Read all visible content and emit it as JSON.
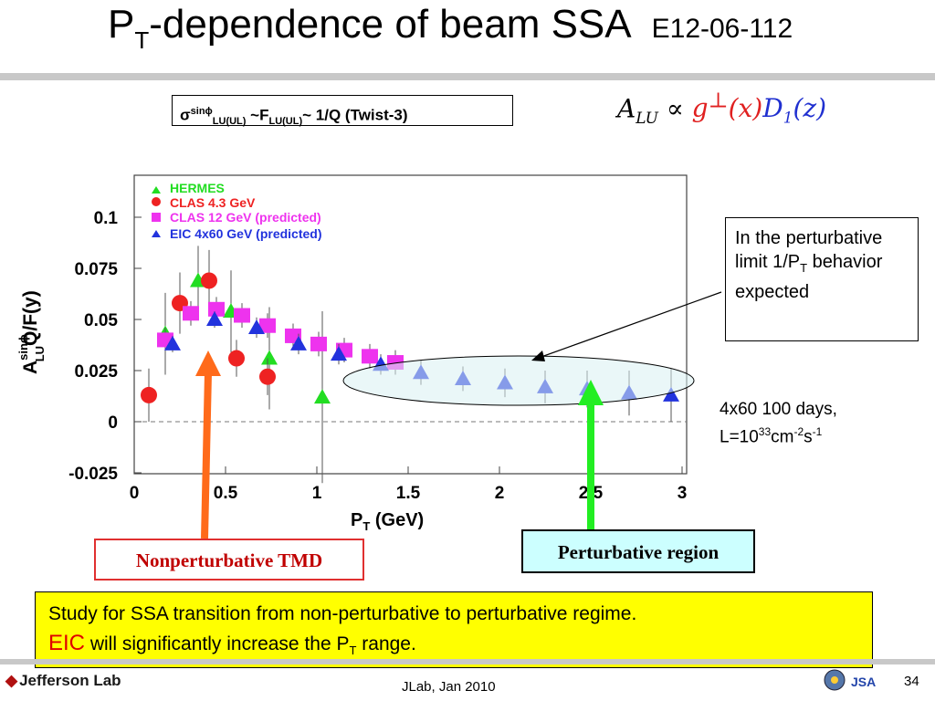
{
  "slide": {
    "title_main": "P",
    "title_sub": "T",
    "title_rest": "-dependence of beam SSA",
    "experiment_code": "E12-06-112",
    "formula": {
      "sigma": "σ",
      "sigma_sup": "sinϕ",
      "sigma_sub": "LU(UL)",
      "tilde1": " ~",
      "F": "F",
      "F_sub": "LU(UL)",
      "rest": "~ 1/Q (Twist-3)"
    },
    "alu_formula": {
      "A": "A",
      "A_sub": "LU",
      "propto": " ∝ ",
      "g": "g",
      "g_sup": "⊥",
      "x": "(x)",
      "D": "D",
      "D_sub": "1",
      "z": "(z)"
    },
    "limit_note": {
      "line1": "In the perturbative limit 1/P",
      "sub": "T",
      "line2": " behavior expected"
    },
    "days_note": {
      "line1": "4x60 100 days,",
      "l_prefix": "L=10",
      "l_exp": "33",
      "cm": "cm",
      "cm_exp": "-2",
      "s": "s",
      "s_exp": "-1"
    },
    "nonpert_label": "Nonperturbative TMD",
    "pert_label": "Perturbative region",
    "study": {
      "line1": "Study for SSA transition from non-perturbative to perturbative regime.",
      "eic": "EIC",
      "line2a": " will significantly increase the P",
      "line2_sub": "T",
      "line2b": " range."
    },
    "footer_logo": "Jefferson Lab",
    "footer_date": "JLab, Jan 2010",
    "page_number": "34",
    "colors": {
      "hermes": "#22dd22",
      "clas43": "#ee2222",
      "clas12": "#ee33ee",
      "eic": "#2233dd",
      "arrow_orange": "#ff6a1a",
      "arrow_green": "#22ee22"
    }
  },
  "chart_data": {
    "type": "scatter",
    "xlabel_main": "P",
    "xlabel_sub": "T",
    "xlabel_rest": " (GeV)",
    "ylabel_main": "A",
    "ylabel_sup": "sinϕ",
    "ylabel_sub": "LU",
    "ylabel_rest": "Q/F(y)",
    "xlim": [
      0,
      3
    ],
    "ylim": [
      -0.025,
      0.12
    ],
    "xticks": [
      "0",
      "0.5",
      "1",
      "1.5",
      "2",
      "2.5",
      "3"
    ],
    "xtick_values": [
      0,
      0.5,
      1,
      1.5,
      2,
      2.5,
      3
    ],
    "yticks": [
      "-0.025",
      "0",
      "0.025",
      "0.05",
      "0.075",
      "0.1"
    ],
    "ytick_values": [
      -0.025,
      0,
      0.025,
      0.05,
      0.075,
      0.1
    ],
    "series": [
      {
        "name": "HERMES",
        "marker": "triangle",
        "color": "#22dd22",
        "points": [
          {
            "x": 0.17,
            "y": 0.043,
            "err": 0.02
          },
          {
            "x": 0.35,
            "y": 0.069,
            "err": 0.017
          },
          {
            "x": 0.53,
            "y": 0.054,
            "err": 0.02
          },
          {
            "x": 0.74,
            "y": 0.031,
            "err": 0.025
          },
          {
            "x": 1.03,
            "y": 0.012,
            "err": 0.042
          }
        ]
      },
      {
        "name": "CLAS 4.3 GeV",
        "marker": "circle",
        "color": "#ee2222",
        "points": [
          {
            "x": 0.08,
            "y": 0.013,
            "err": 0.013
          },
          {
            "x": 0.25,
            "y": 0.058,
            "err": 0.015
          },
          {
            "x": 0.41,
            "y": 0.069,
            "err": 0.015
          },
          {
            "x": 0.56,
            "y": 0.031,
            "err": 0.009
          },
          {
            "x": 0.73,
            "y": 0.022,
            "err": 0.009
          }
        ]
      },
      {
        "name": "CLAS 12 GeV (predicted)",
        "marker": "square",
        "color": "#ee33ee",
        "points": [
          {
            "x": 0.17,
            "y": 0.04,
            "err": 0.006
          },
          {
            "x": 0.31,
            "y": 0.053,
            "err": 0.006
          },
          {
            "x": 0.45,
            "y": 0.055,
            "err": 0.006
          },
          {
            "x": 0.59,
            "y": 0.052,
            "err": 0.006
          },
          {
            "x": 0.73,
            "y": 0.047,
            "err": 0.006
          },
          {
            "x": 0.87,
            "y": 0.042,
            "err": 0.006
          },
          {
            "x": 1.01,
            "y": 0.038,
            "err": 0.006
          },
          {
            "x": 1.15,
            "y": 0.035,
            "err": 0.006
          },
          {
            "x": 1.29,
            "y": 0.032,
            "err": 0.006
          },
          {
            "x": 1.43,
            "y": 0.029,
            "err": 0.006
          }
        ]
      },
      {
        "name": "EIC 4x60 GeV (predicted)",
        "marker": "triangle",
        "color": "#2233dd",
        "points": [
          {
            "x": 0.21,
            "y": 0.038,
            "err": 0.004
          },
          {
            "x": 0.44,
            "y": 0.05,
            "err": 0.004
          },
          {
            "x": 0.67,
            "y": 0.046,
            "err": 0.005
          },
          {
            "x": 0.9,
            "y": 0.038,
            "err": 0.005
          },
          {
            "x": 1.12,
            "y": 0.033,
            "err": 0.005
          },
          {
            "x": 1.35,
            "y": 0.028,
            "err": 0.005
          },
          {
            "x": 1.57,
            "y": 0.024,
            "err": 0.006
          },
          {
            "x": 1.8,
            "y": 0.021,
            "err": 0.006
          },
          {
            "x": 2.03,
            "y": 0.019,
            "err": 0.007
          },
          {
            "x": 2.25,
            "y": 0.017,
            "err": 0.008
          },
          {
            "x": 2.48,
            "y": 0.016,
            "err": 0.009
          },
          {
            "x": 2.71,
            "y": 0.014,
            "err": 0.011
          },
          {
            "x": 2.94,
            "y": 0.013,
            "err": 0.013
          }
        ]
      }
    ],
    "legend_position": "top-left",
    "zero_line": "dashed"
  }
}
